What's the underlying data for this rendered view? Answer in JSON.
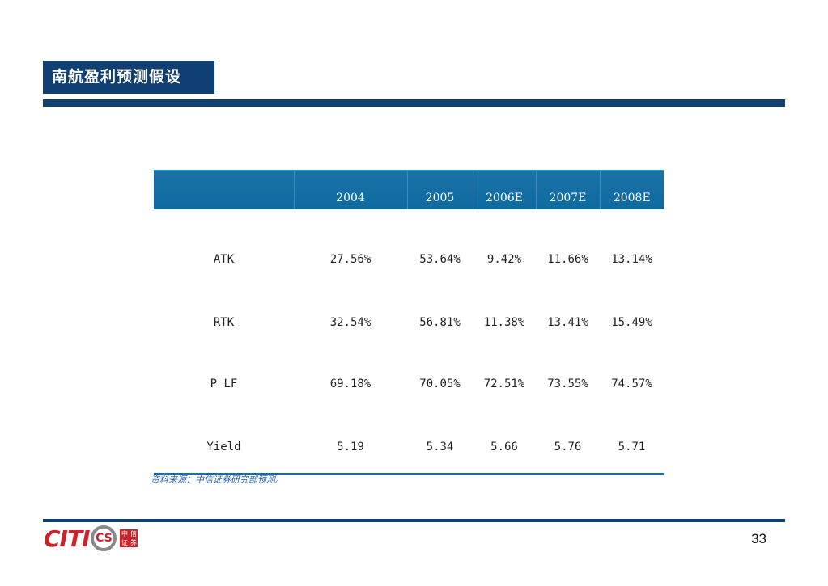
{
  "title": "南航盈利预测假设",
  "table": {
    "headers": [
      "",
      "2004",
      "2005",
      "2006E",
      "2007E",
      "2008E"
    ],
    "rows": [
      {
        "label": "ATK",
        "values": [
          "27.56%",
          "53.64%",
          "9.42%",
          "11.66%",
          "13.14%"
        ]
      },
      {
        "label": "RTK",
        "values": [
          "32.54%",
          "56.81%",
          "11.38%",
          "13.41%",
          "15.49%"
        ]
      },
      {
        "label": "P LF",
        "values": [
          "69.18%",
          "70.05%",
          "72.51%",
          "73.55%",
          "74.57%"
        ]
      },
      {
        "label": "Yield",
        "values": [
          "5.19",
          "5.34",
          "5.66",
          "5.76",
          "5.71"
        ]
      }
    ]
  },
  "source": "资料来源：中信证券研究部预测。",
  "logo": {
    "text": "CITI",
    "mark": "CS",
    "seal": [
      "中",
      "信",
      "证",
      "券"
    ]
  },
  "page_number": "33",
  "colors": {
    "primary": "#0f3f73",
    "header": "#0e6aa0",
    "logo_red": "#c8242b"
  }
}
